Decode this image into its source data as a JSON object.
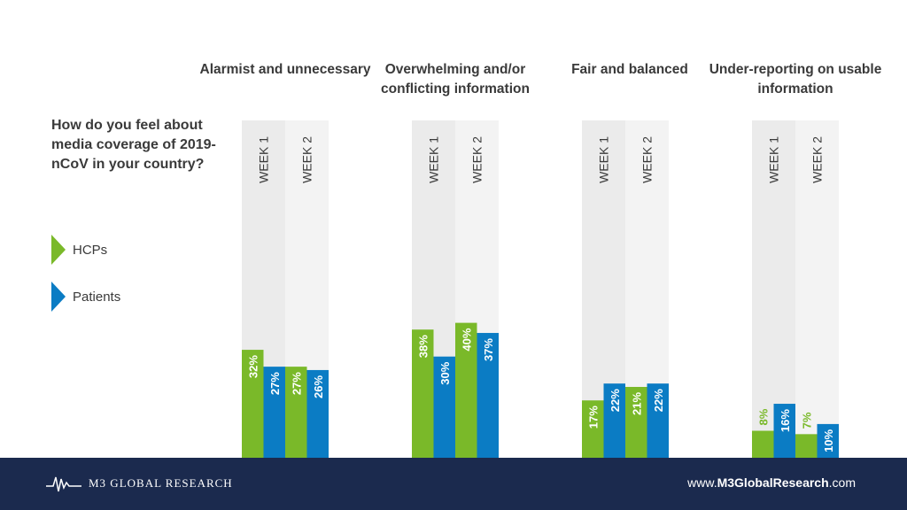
{
  "question": "How do you feel about media coverage of 2019-nCoV in your country?",
  "legend": {
    "hcps": {
      "label": "HCPs",
      "color": "#7ab929"
    },
    "patients": {
      "label": "Patients",
      "color": "#0b7cc4"
    }
  },
  "footer": {
    "brand": "M3 GLOBAL RESEARCH",
    "url_prefix": "www.",
    "url_bold": "M3GlobalResearch",
    "url_suffix": ".com"
  },
  "chart_data": {
    "type": "bar",
    "ylim": [
      0,
      100
    ],
    "week_labels": [
      "WEEK 1",
      "WEEK 2"
    ],
    "categories": [
      "Alarmist and unnecessary",
      "Overwhelming and/or conflicting information",
      "Fair and balanced",
      "Under-reporting on usable information"
    ],
    "series": [
      {
        "name": "HCPs",
        "color": "#7ab929",
        "week1": [
          32,
          38,
          17,
          8
        ],
        "week2": [
          27,
          40,
          21,
          7
        ]
      },
      {
        "name": "Patients",
        "color": "#0b7cc4",
        "week1": [
          27,
          30,
          22,
          16
        ],
        "week2": [
          26,
          37,
          22,
          10
        ]
      }
    ]
  }
}
